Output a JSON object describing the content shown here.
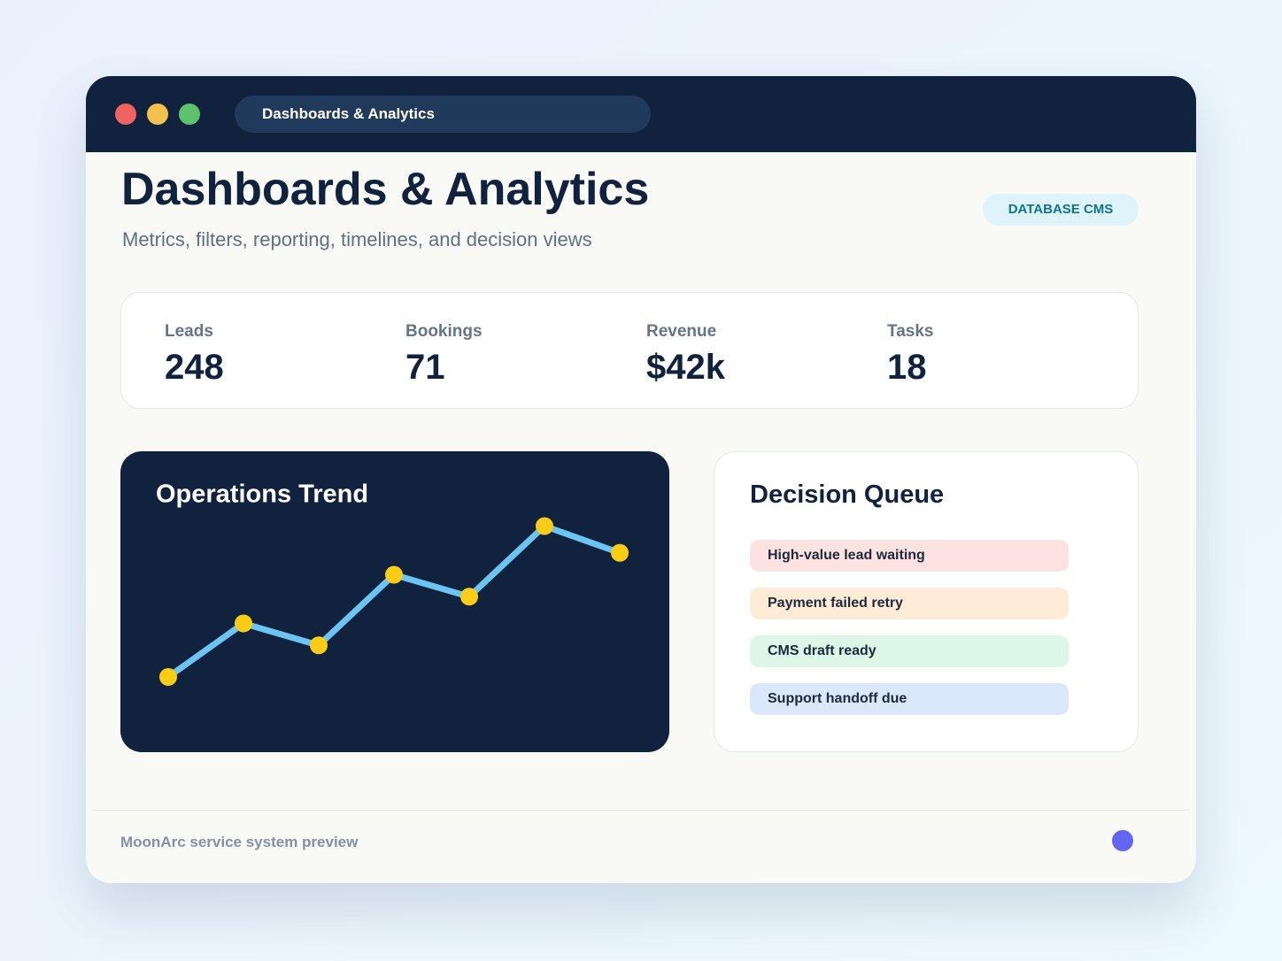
{
  "window": {
    "tab": "Dashboards & Analytics"
  },
  "header": {
    "title": "Dashboards & Analytics",
    "subtitle": "Metrics, filters, reporting, timelines, and decision views",
    "badge": "DATABASE CMS"
  },
  "stats": [
    {
      "label": "Leads",
      "value": "248"
    },
    {
      "label": "Bookings",
      "value": "71"
    },
    {
      "label": "Revenue",
      "value": "$42k"
    },
    {
      "label": "Tasks",
      "value": "18"
    }
  ],
  "chart_data": {
    "type": "line",
    "title": "Operations Trend",
    "values": [
      20,
      42,
      33,
      62,
      53,
      82,
      71
    ],
    "color": "#6cc4f2",
    "marker_color": "#facc15"
  },
  "queue": {
    "title": "Decision Queue",
    "items": [
      {
        "label": "High-value lead waiting",
        "color": "#fde2e2"
      },
      {
        "label": "Payment failed retry",
        "color": "#feecd6"
      },
      {
        "label": "CMS draft ready",
        "color": "#dcf7e8"
      },
      {
        "label": "Support handoff due",
        "color": "#dbe8fb"
      }
    ]
  },
  "footer": {
    "text": "MoonArc service system preview"
  }
}
